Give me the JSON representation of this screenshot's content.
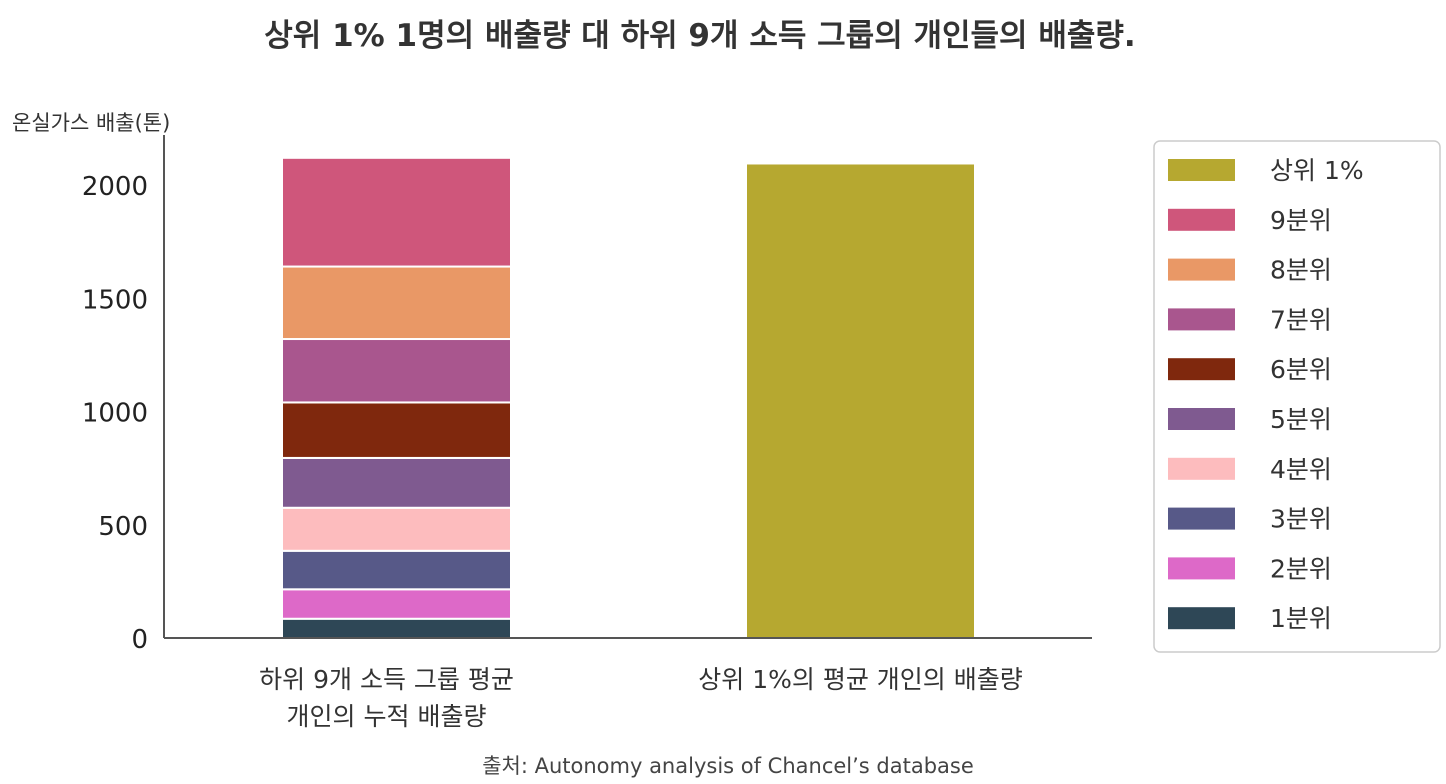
{
  "chart_data": {
    "type": "bar",
    "stacked": true,
    "title": "상위 1% 1명의 배출량 대 하위 9개 소득 그룹의 개인들의 배출량.",
    "ylabel": "온실가스 배출(톤)",
    "ylim": [
      0,
      2200
    ],
    "yticks": [
      0,
      500,
      1000,
      1500,
      2000
    ],
    "grid": false,
    "legend_position": "right",
    "source": "출처: Autonomy analysis of Chancel’s database",
    "categories": [
      [
        "하위 9개 소득 그룹 평균",
        "개인의 누적 배출량"
      ],
      [
        "상위 1%의 평균 개인의 배출량"
      ]
    ],
    "series": [
      {
        "name": "1분위",
        "color": "#2e4756",
        "values": [
          85,
          0
        ]
      },
      {
        "name": "2분위",
        "color": "#dd69c8",
        "values": [
          130,
          0
        ]
      },
      {
        "name": "3분위",
        "color": "#575988",
        "values": [
          170,
          0
        ]
      },
      {
        "name": "4분위",
        "color": "#fdbcbe",
        "values": [
          190,
          0
        ]
      },
      {
        "name": "5분위",
        "color": "#7f5a90",
        "values": [
          220,
          0
        ]
      },
      {
        "name": "6분위",
        "color": "#7f280d",
        "values": [
          245,
          0
        ]
      },
      {
        "name": "7분위",
        "color": "#a9568e",
        "values": [
          280,
          0
        ]
      },
      {
        "name": "8분위",
        "color": "#e99866",
        "values": [
          320,
          0
        ]
      },
      {
        "name": "9분위",
        "color": "#cf567b",
        "values": [
          480,
          0
        ]
      },
      {
        "name": "상위 1%",
        "color": "#b6a830",
        "values": [
          0,
          2095
        ]
      }
    ],
    "legend_order": [
      "상위 1%",
      "9분위",
      "8분위",
      "7분위",
      "6분위",
      "5분위",
      "4분위",
      "3분위",
      "2분위",
      "1분위"
    ]
  }
}
